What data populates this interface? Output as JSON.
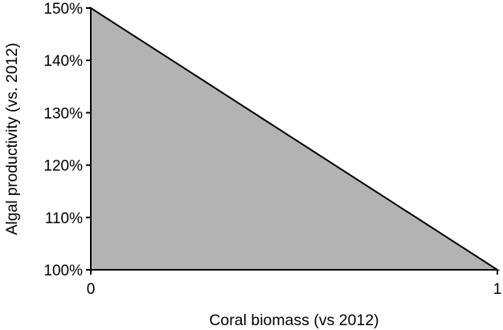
{
  "chart_data": {
    "type": "area",
    "title": "",
    "xlabel": "Coral biomass (vs 2012)",
    "ylabel": "Algal productivity (vs. 2012)",
    "x": [
      0,
      1
    ],
    "series": [
      {
        "values": [
          150,
          100
        ]
      }
    ],
    "xlim": [
      0,
      1
    ],
    "ylim": [
      100,
      150
    ],
    "x_ticks": [
      0,
      1
    ],
    "x_tick_labels": [
      "0",
      "1"
    ],
    "y_ticks": [
      100,
      110,
      120,
      130,
      140,
      150
    ],
    "y_tick_labels": [
      "100%",
      "110%",
      "120%",
      "130%",
      "140%",
      "150%"
    ],
    "grid": false,
    "legend": "none",
    "colors": {
      "fill": "#b3b3b3",
      "stroke": "#000000"
    }
  }
}
